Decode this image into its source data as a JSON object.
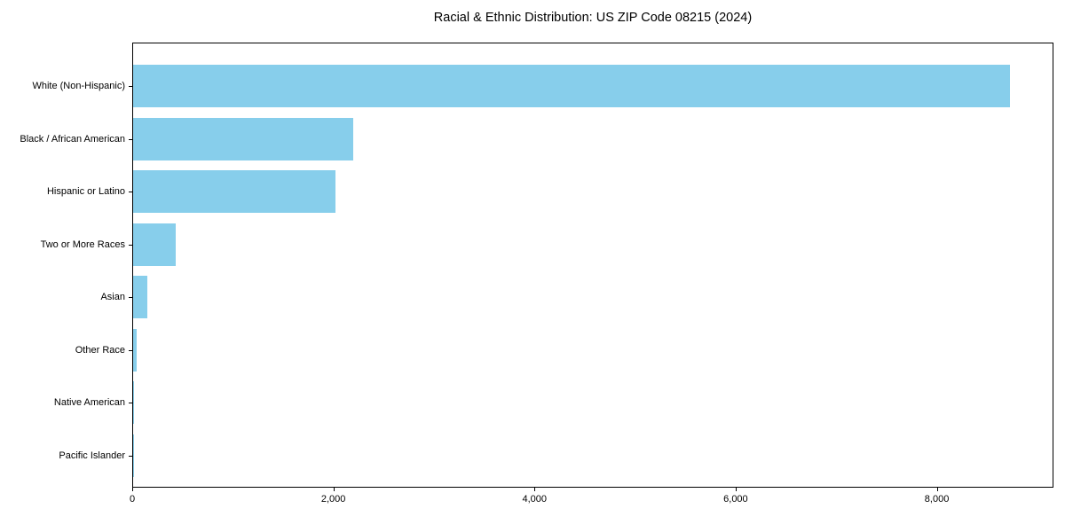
{
  "chart_data": {
    "type": "bar",
    "orientation": "horizontal",
    "title": "Racial & Ethnic Distribution: US ZIP Code 08215 (2024)",
    "xlabel": "",
    "ylabel": "",
    "grid": false,
    "legend": null,
    "bar_color": "#87CEEB",
    "axis_color": "#000000",
    "background_color": "#ffffff",
    "categories": [
      "White (Non-Hispanic)",
      "Black / African American",
      "Hispanic or Latino",
      "Two or More Races",
      "Asian",
      "Other Race",
      "Native American",
      "Pacific Islander"
    ],
    "values": [
      8716,
      2185,
      2012,
      420,
      140,
      32,
      9,
      2
    ],
    "xlim": [
      0,
      9160
    ],
    "x_ticks": [
      {
        "value": 0,
        "label": "0"
      },
      {
        "value": 2000,
        "label": "2,000"
      },
      {
        "value": 4000,
        "label": "4,000"
      },
      {
        "value": 6000,
        "label": "6,000"
      },
      {
        "value": 8000,
        "label": "8,000"
      }
    ]
  }
}
